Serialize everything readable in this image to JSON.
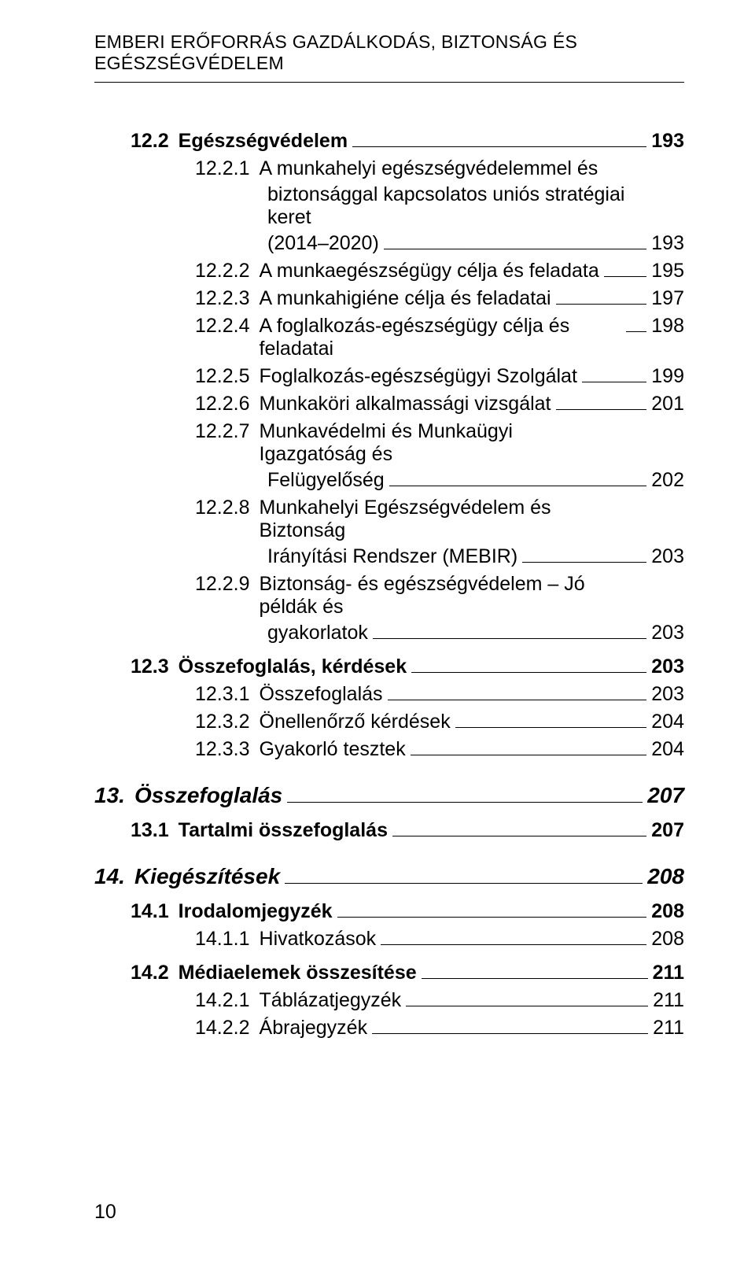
{
  "header": "EMBERI ERŐFORRÁS GAZDÁLKODÁS, BIZTONSÁG ÉS EGÉSZSÉGVÉDELEM",
  "entries": {
    "e1": {
      "num": "12.2",
      "title": "Egészségvédelem",
      "page": "193"
    },
    "e2a": {
      "num": "12.2.1",
      "title": "A munkahelyi egészségvédelemmel és"
    },
    "e2b": {
      "title": "biztonsággal kapcsolatos uniós stratégiai keret"
    },
    "e2c": {
      "title": "(2014–2020)",
      "page": "193"
    },
    "e3": {
      "num": "12.2.2",
      "title": "A munkaegészségügy célja és feladata",
      "page": "195"
    },
    "e4": {
      "num": "12.2.3",
      "title": "A munkahigiéne célja és feladatai",
      "page": "197"
    },
    "e5": {
      "num": "12.2.4",
      "title": "A foglalkozás-egészségügy célja és feladatai",
      "page": "198"
    },
    "e6": {
      "num": "12.2.5",
      "title": "Foglalkozás-egészségügyi Szolgálat",
      "page": "199"
    },
    "e7": {
      "num": "12.2.6",
      "title": "Munkaköri alkalmassági vizsgálat",
      "page": "201"
    },
    "e8a": {
      "num": "12.2.7",
      "title": "Munkavédelmi és Munkaügyi Igazgatóság és"
    },
    "e8b": {
      "title": "Felügyelőség",
      "page": "202"
    },
    "e9a": {
      "num": "12.2.8",
      "title": "Munkahelyi Egészségvédelem és Biztonság"
    },
    "e9b": {
      "title": "Irányítási Rendszer (MEBIR)",
      "page": "203"
    },
    "e10a": {
      "num": "12.2.9",
      "title": "Biztonság- és egészségvédelem – Jó példák és"
    },
    "e10b": {
      "title": "gyakorlatok",
      "page": "203"
    },
    "e11": {
      "num": "12.3",
      "title": "Összefoglalás, kérdések",
      "page": "203"
    },
    "e12": {
      "num": "12.3.1",
      "title": "Összefoglalás",
      "page": "203"
    },
    "e13": {
      "num": "12.3.2",
      "title": "Önellenőrző kérdések",
      "page": "204"
    },
    "e14": {
      "num": "12.3.3",
      "title": "Gyakorló tesztek",
      "page": "204"
    },
    "e15": {
      "num": "13.",
      "title": "Összefoglalás",
      "page": "207"
    },
    "e16": {
      "num": "13.1",
      "title": "Tartalmi összefoglalás",
      "page": "207"
    },
    "e17": {
      "num": "14.",
      "title": "Kiegészítések",
      "page": "208"
    },
    "e18": {
      "num": "14.1",
      "title": "Irodalomjegyzék",
      "page": "208"
    },
    "e19": {
      "num": "14.1.1",
      "title": "Hivatkozások",
      "page": "208"
    },
    "e20": {
      "num": "14.2",
      "title": "Médiaelemek összesítése",
      "page": "211"
    },
    "e21": {
      "num": "14.2.1",
      "title": "Táblázatjegyzék",
      "page": "211"
    },
    "e22": {
      "num": "14.2.2",
      "title": "Ábrajegyzék",
      "page": "211"
    }
  },
  "footer_page_number": "10",
  "style": {
    "font_family": "Arial",
    "text_color": "#000000",
    "background": "#ffffff",
    "leader_color": "#000000",
    "header_fontsize_pt": 17,
    "body_fontsize_pt": 19,
    "chapter_fontsize_pt": 21
  }
}
